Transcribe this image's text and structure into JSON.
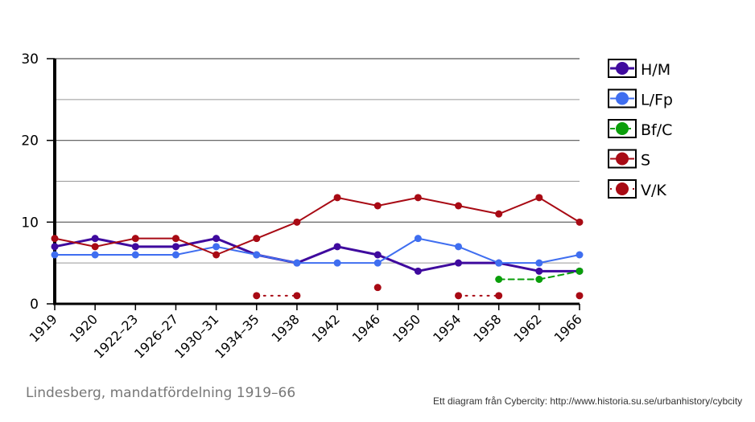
{
  "caption": "Lindesberg, mandatfördelning 1919–66",
  "credit": "Ett diagram från Cybercity: http://www.historia.su.se/urbanhistory/cybcity",
  "chart_data": {
    "type": "line",
    "categories": [
      "1919",
      "1920",
      "1922–23",
      "1926–27",
      "1930–31",
      "1934–35",
      "1938",
      "1942",
      "1946",
      "1950",
      "1954",
      "1958",
      "1962",
      "1966"
    ],
    "y_ticks": [
      "0",
      "10",
      "20",
      "30"
    ],
    "ylim": [
      0,
      30
    ],
    "grid": true,
    "legend_position": "right",
    "series": [
      {
        "name": "H/M",
        "color": "#3f0a9e",
        "style": "solid",
        "marker_color": "#3f0a9e",
        "values": [
          7,
          8,
          7,
          7,
          8,
          6,
          5,
          7,
          6,
          4,
          5,
          5,
          4,
          4
        ]
      },
      {
        "name": "L/Fp",
        "color": "#3f6ef0",
        "style": "solid",
        "marker_color": "#3f6ef0",
        "values": [
          6,
          6,
          6,
          6,
          7,
          6,
          5,
          5,
          5,
          8,
          7,
          5,
          5,
          6
        ]
      },
      {
        "name": "Bf/C",
        "color": "#0a9e0a",
        "style": "dashed",
        "marker_color": "#0a9e0a",
        "values": [
          null,
          null,
          null,
          null,
          null,
          null,
          null,
          null,
          null,
          null,
          null,
          3,
          3,
          4
        ]
      },
      {
        "name": "S",
        "color": "#a80a14",
        "style": "solid",
        "marker_color": "#a80a14",
        "values": [
          8,
          7,
          8,
          8,
          6,
          8,
          10,
          13,
          12,
          13,
          12,
          11,
          13,
          10
        ]
      },
      {
        "name": "V/K",
        "color": "#a80a14",
        "style": "dotted",
        "marker_color": "#a80a14",
        "values": [
          null,
          null,
          null,
          null,
          null,
          1,
          1,
          null,
          2,
          null,
          1,
          1,
          null,
          1
        ]
      }
    ]
  }
}
